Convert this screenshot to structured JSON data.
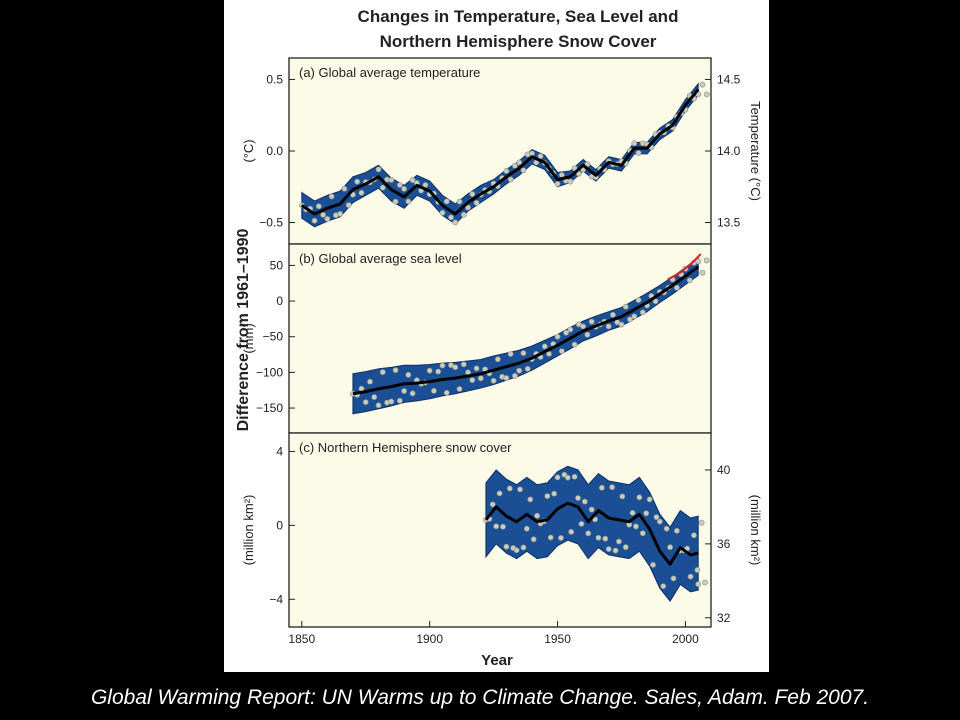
{
  "caption": "Global Warming Report:  UN Warms up to Climate Change.  Sales, Adam.  Feb 2007.",
  "colors": {
    "band": "#1a4f95",
    "band_edge": "#0c2f66",
    "smooth": "#000000",
    "points": "#c9ccc0",
    "red": "#e0201e",
    "panel_bg": "#fbfbe7"
  },
  "chart_data": {
    "type": "line",
    "title_lines": [
      "Changes in Temperature, Sea Level and",
      "Northern Hemisphere Snow Cover"
    ],
    "shared_ylabel": "Difference from 1961–1990",
    "xlabel": "Year",
    "xlim": [
      1845,
      2010
    ],
    "xticks": [
      1850,
      1900,
      1950,
      2000
    ],
    "panels": [
      {
        "label": "(a) Global average temperature",
        "ylabel_left": "(°C)",
        "ylabel_right": "Temperature (°C)",
        "ylim": [
          -0.65,
          0.65
        ],
        "yticks": [
          -0.5,
          0.0,
          0.5
        ],
        "right_ticks": [
          {
            "value": -0.5,
            "label": "13.5"
          },
          {
            "value": 0.0,
            "label": "14.0"
          },
          {
            "value": 0.5,
            "label": "14.5"
          }
        ],
        "series": [
          {
            "x": [
              1850,
              1855,
              1860,
              1865,
              1870,
              1875,
              1880,
              1885,
              1890,
              1895,
              1900,
              1905,
              1910,
              1915,
              1920,
              1925,
              1930,
              1935,
              1940,
              1945,
              1950,
              1955,
              1960,
              1965,
              1970,
              1975,
              1980,
              1985,
              1990,
              1995,
              2000,
              2005
            ],
            "y": [
              -0.38,
              -0.44,
              -0.4,
              -0.37,
              -0.27,
              -0.23,
              -0.18,
              -0.27,
              -0.32,
              -0.24,
              -0.28,
              -0.38,
              -0.44,
              -0.36,
              -0.3,
              -0.25,
              -0.18,
              -0.12,
              -0.04,
              -0.08,
              -0.2,
              -0.18,
              -0.1,
              -0.17,
              -0.08,
              -0.1,
              0.02,
              0.02,
              0.12,
              0.18,
              0.32,
              0.43
            ],
            "band": [
              0.09,
              0.09,
              0.09,
              0.09,
              0.09,
              0.08,
              0.08,
              0.08,
              0.08,
              0.07,
              0.07,
              0.07,
              0.07,
              0.06,
              0.06,
              0.05,
              0.05,
              0.05,
              0.05,
              0.05,
              0.05,
              0.04,
              0.04,
              0.04,
              0.04,
              0.04,
              0.04,
              0.04,
              0.04,
              0.04,
              0.04,
              0.04
            ]
          }
        ]
      },
      {
        "label": "(b) Global average sea level",
        "ylabel_left": "(mm)",
        "ylim": [
          -185,
          80
        ],
        "yticks": [
          -150,
          -100,
          -50,
          0,
          50
        ],
        "series": [
          {
            "x": [
              1870,
              1875,
              1880,
              1885,
              1890,
              1895,
              1900,
              1905,
              1910,
              1915,
              1920,
              1925,
              1930,
              1935,
              1940,
              1945,
              1950,
              1955,
              1960,
              1965,
              1970,
              1975,
              1980,
              1985,
              1990,
              1995,
              2000,
              2005
            ],
            "y": [
              -130,
              -127,
              -123,
              -120,
              -116,
              -115,
              -113,
              -110,
              -108,
              -105,
              -102,
              -97,
              -92,
              -87,
              -80,
              -71,
              -62,
              -52,
              -42,
              -35,
              -28,
              -22,
              -12,
              -2,
              10,
              22,
              35,
              48
            ],
            "band": [
              28,
              28,
              28,
              27,
              26,
              25,
              24,
              23,
              22,
              21,
              20,
              20,
              19,
              18,
              17,
              16,
              15,
              15,
              14,
              14,
              13,
              13,
              13,
              13,
              12,
              12,
              12,
              12
            ]
          },
          {
            "name": "",
            "x": [
              1993,
              1998,
              2003,
              2006
            ],
            "y": [
              30,
              40,
              55,
              66
            ]
          }
        ]
      },
      {
        "label": "(c) Northern Hemisphere snow cover",
        "ylabel_left": "(million km²)",
        "ylabel_right": "(million km²)",
        "ylim": [
          -5.5,
          5.0
        ],
        "yticks": [
          -4,
          0,
          4
        ],
        "right_ticks": [
          {
            "value": -5,
            "label": "32"
          },
          {
            "value": -1,
            "label": "36"
          },
          {
            "value": 3,
            "label": "40"
          }
        ],
        "series": [
          {
            "x": [
              1922,
              1926,
              1930,
              1934,
              1938,
              1942,
              1946,
              1950,
              1954,
              1958,
              1962,
              1966,
              1970,
              1974,
              1978,
              1982,
              1986,
              1990,
              1994,
              1998,
              2002,
              2005
            ],
            "y": [
              0.3,
              1.0,
              0.5,
              0.2,
              0.6,
              0.2,
              0.3,
              0.9,
              1.2,
              1.0,
              0.2,
              0.8,
              0.4,
              0.3,
              0.2,
              0.6,
              -0.2,
              -1.4,
              -2.1,
              -1.2,
              -1.6,
              -1.5
            ],
            "band": [
              2.0,
              2.0,
              2.0,
              2.0,
              2.0,
              2.0,
              2.0,
              2.0,
              2.0,
              2.0,
              2.0,
              2.0,
              2.0,
              2.0,
              2.0,
              2.0,
              2.0,
              2.0,
              2.0,
              2.0,
              2.0,
              2.0
            ]
          }
        ]
      }
    ]
  }
}
